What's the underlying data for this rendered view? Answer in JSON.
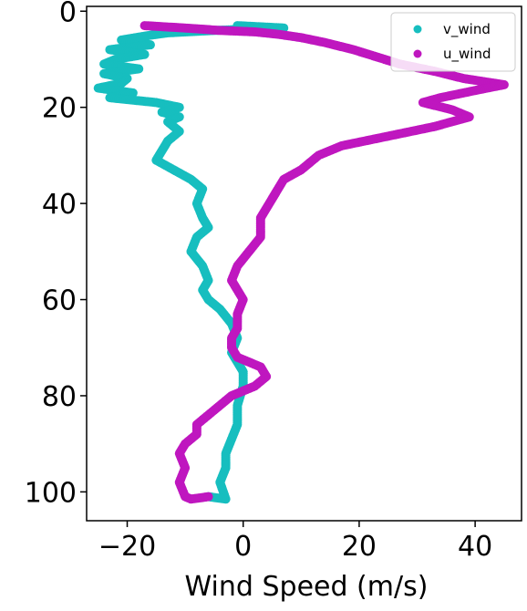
{
  "chart_data": {
    "type": "scatter",
    "title": "",
    "xlabel": "Wind Speed (m/s)",
    "ylabel": "",
    "xlim": [
      -27,
      48
    ],
    "ylim": [
      106,
      -1
    ],
    "y_inverted": true,
    "grid": false,
    "legend_position": "top-right",
    "x_ticks": [
      -20,
      0,
      20,
      40
    ],
    "x_tick_labels": [
      "−20",
      "0",
      "20",
      "40"
    ],
    "y_ticks": [
      0,
      20,
      40,
      60,
      80,
      100
    ],
    "y_tick_labels": [
      "0",
      "20",
      "40",
      "60",
      "80",
      "100"
    ],
    "series": [
      {
        "name": "v_wind",
        "color": "#17bebf",
        "points": [
          [
            -1,
            3
          ],
          [
            7,
            3.5
          ],
          [
            -5,
            4
          ],
          [
            -13,
            4.5
          ],
          [
            -16,
            5
          ],
          [
            -21,
            6
          ],
          [
            -16,
            7
          ],
          [
            -23,
            8
          ],
          [
            -17,
            9
          ],
          [
            -22,
            10
          ],
          [
            -24,
            11
          ],
          [
            -18,
            12
          ],
          [
            -24,
            13
          ],
          [
            -20,
            14
          ],
          [
            -21,
            15
          ],
          [
            -25,
            16
          ],
          [
            -19,
            17
          ],
          [
            -23,
            18
          ],
          [
            -15,
            19
          ],
          [
            -11,
            20
          ],
          [
            -14,
            21
          ],
          [
            -11,
            22
          ],
          [
            -13,
            23
          ],
          [
            -11,
            25
          ],
          [
            -13,
            27
          ],
          [
            -14,
            29
          ],
          [
            -15,
            31
          ],
          [
            -12,
            33
          ],
          [
            -9,
            35
          ],
          [
            -7,
            37
          ],
          [
            -8,
            40
          ],
          [
            -7,
            43
          ],
          [
            -6,
            45
          ],
          [
            -8,
            47
          ],
          [
            -9,
            50
          ],
          [
            -7,
            53
          ],
          [
            -6,
            56
          ],
          [
            -7,
            58
          ],
          [
            -6,
            60
          ],
          [
            -4,
            62
          ],
          [
            -2,
            65
          ],
          [
            -1,
            68
          ],
          [
            -2,
            71
          ],
          [
            -1,
            73
          ],
          [
            0,
            75
          ],
          [
            0,
            78
          ],
          [
            -1,
            82
          ],
          [
            -1,
            86
          ],
          [
            -2,
            89
          ],
          [
            -3,
            92
          ],
          [
            -3,
            95
          ],
          [
            -4,
            98
          ],
          [
            -3,
            101.5
          ],
          [
            -6,
            101
          ]
        ]
      },
      {
        "name": "u_wind",
        "color": "#bf17bf",
        "points": [
          [
            -17,
            3
          ],
          [
            -10,
            3.5
          ],
          [
            -4,
            4
          ],
          [
            2,
            4.3
          ],
          [
            6,
            4.8
          ],
          [
            10,
            5.5
          ],
          [
            14,
            6.5
          ],
          [
            19,
            8
          ],
          [
            23,
            9.5
          ],
          [
            27,
            11
          ],
          [
            33,
            12.5
          ],
          [
            38,
            14
          ],
          [
            45,
            15.3
          ],
          [
            40,
            16.5
          ],
          [
            34,
            18
          ],
          [
            31,
            19
          ],
          [
            36,
            20.5
          ],
          [
            39,
            22
          ],
          [
            33,
            24
          ],
          [
            25,
            26
          ],
          [
            17,
            28
          ],
          [
            13,
            30
          ],
          [
            10,
            33
          ],
          [
            7,
            35
          ],
          [
            6,
            37
          ],
          [
            5,
            39
          ],
          [
            4,
            41
          ],
          [
            3,
            43
          ],
          [
            3,
            45
          ],
          [
            3,
            47
          ],
          [
            1,
            50
          ],
          [
            -1,
            53
          ],
          [
            -2,
            56
          ],
          [
            0,
            60
          ],
          [
            -1,
            63
          ],
          [
            -1,
            66
          ],
          [
            -2,
            68
          ],
          [
            -2,
            70
          ],
          [
            -1,
            72
          ],
          [
            1,
            73
          ],
          [
            3,
            74
          ],
          [
            4,
            76
          ],
          [
            2,
            78
          ],
          [
            -2,
            80
          ],
          [
            -4,
            82
          ],
          [
            -6,
            84
          ],
          [
            -8,
            86
          ],
          [
            -8,
            88
          ],
          [
            -10,
            90
          ],
          [
            -11,
            92
          ],
          [
            -10,
            95
          ],
          [
            -11,
            98
          ],
          [
            -10,
            101
          ],
          [
            -9,
            101.5
          ],
          [
            -6,
            101
          ]
        ]
      }
    ]
  }
}
